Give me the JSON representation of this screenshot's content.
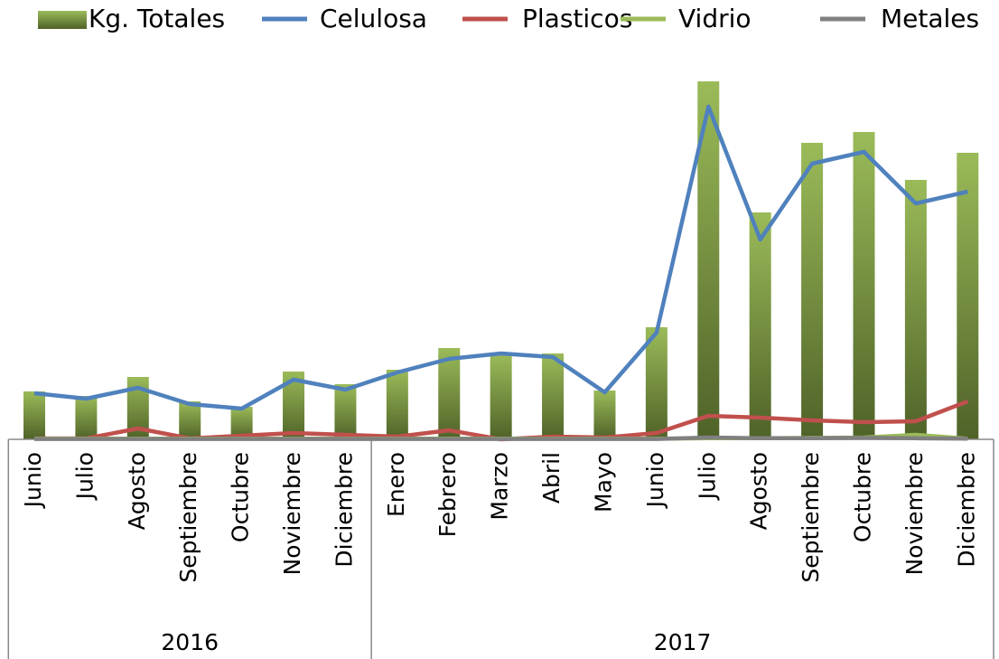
{
  "chart_data": {
    "type": "bar",
    "categories": [
      "Junio",
      "Julio",
      "Agosto",
      "Septiembre",
      "Octubre",
      "Noviembre",
      "Diciembre",
      "Enero",
      "Febrero",
      "Marzo",
      "Abril",
      "Mayo",
      "Junio",
      "Julio",
      "Agosto",
      "Septiembre",
      "Octubre",
      "Noviembre",
      "Diciembre"
    ],
    "groups": [
      {
        "label": "2016",
        "span": 7
      },
      {
        "label": "2017",
        "span": 12
      }
    ],
    "ylim": [
      0,
      100
    ],
    "legend": "top",
    "series": [
      {
        "name": "Kg. Totales",
        "type": "bar",
        "color": "#9bbb59",
        "values": [
          13.25,
          12,
          17.25,
          10.5,
          9,
          18.75,
          15.25,
          19.25,
          25.25,
          23.5,
          23.75,
          13.5,
          31,
          99,
          62.75,
          82,
          85,
          71.75,
          79.25
        ]
      },
      {
        "name": "Celulosa",
        "type": "line",
        "color": "#4f81bd",
        "values": [
          12.75,
          11.25,
          14.25,
          9.75,
          8.5,
          16.5,
          13.75,
          18.5,
          22.25,
          23.75,
          22.75,
          13,
          29.5,
          92,
          55.25,
          76.25,
          79.5,
          65.25,
          68.5
        ]
      },
      {
        "name": "Plasticos",
        "type": "line",
        "color": "#c0504d",
        "values": [
          0.25,
          0.25,
          3,
          0.25,
          1,
          1.75,
          1.25,
          0.75,
          2.5,
          0,
          0.75,
          0.5,
          1.75,
          6.5,
          6,
          5.25,
          4.75,
          5,
          10.5
        ]
      },
      {
        "name": "Vidrio",
        "type": "line",
        "color": "#9bbb59",
        "values": [
          0.2,
          0.2,
          0.2,
          0.2,
          0.2,
          0.2,
          0.2,
          0.2,
          0.2,
          0.2,
          0.2,
          0.2,
          0.2,
          0.3,
          0.3,
          0.4,
          0.5,
          1.25,
          0.2
        ]
      },
      {
        "name": "Metales",
        "type": "line",
        "color": "#808080",
        "values": [
          0.1,
          0.1,
          0.1,
          0.1,
          0.1,
          0.1,
          0.1,
          0.1,
          0.1,
          0.1,
          0.1,
          0.1,
          0.1,
          0.5,
          0.3,
          0.3,
          0.4,
          0.3,
          0.2
        ]
      }
    ]
  }
}
